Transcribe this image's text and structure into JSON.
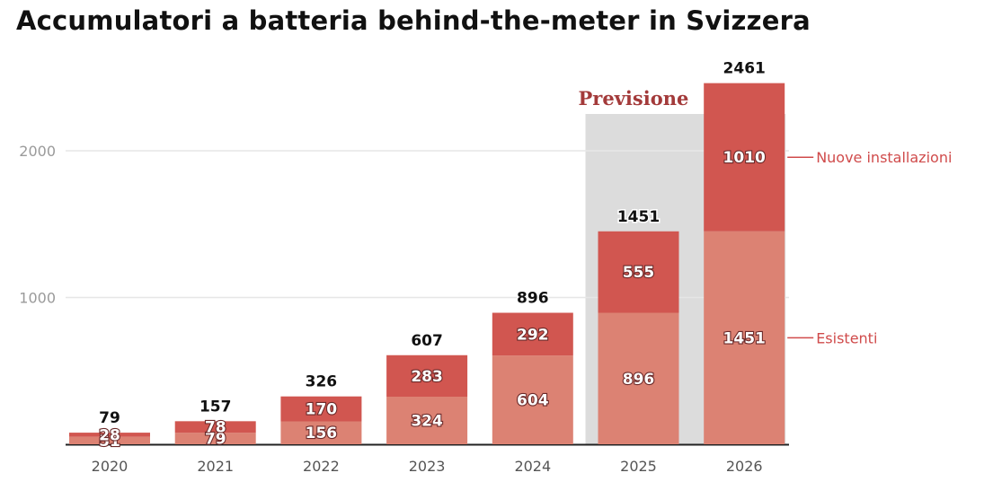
{
  "title": "Accumulatori a batteria behind-the-meter in Svizzera",
  "colors": {
    "existing": "#dc8273",
    "new": "#d15650",
    "forecast_bg": "#dcdcdc",
    "forecast_text": "#a33a3a",
    "legend_text": "#d04b4b",
    "grid": "#e6e6e6",
    "axis": "#222222"
  },
  "chart_data": {
    "type": "bar",
    "stacked": true,
    "title": "Accumulatori a batteria behind-the-meter in Svizzera",
    "xlabel": "",
    "ylabel": "",
    "categories": [
      "2020",
      "2021",
      "2022",
      "2023",
      "2024",
      "2025",
      "2026"
    ],
    "series": [
      {
        "name": "Esistenti",
        "values": [
          51,
          79,
          156,
          324,
          604,
          896,
          1451
        ]
      },
      {
        "name": "Nuove installazioni",
        "values": [
          28,
          78,
          170,
          283,
          292,
          555,
          1010
        ]
      }
    ],
    "totals": [
      79,
      157,
      326,
      607,
      896,
      1451,
      2461
    ],
    "segment_labels": {
      "Esistenti": [
        "51",
        "79",
        "156",
        "324",
        "604",
        "896",
        "1451"
      ],
      "Nuove installazioni": [
        "28",
        "78",
        "170",
        "283",
        "292",
        "555",
        "1010"
      ]
    },
    "total_labels": [
      "79",
      "157",
      "326",
      "607",
      "896",
      "1451",
      "2461"
    ],
    "yticks": [
      1000,
      2000
    ],
    "ytick_labels": [
      "1000",
      "2000"
    ],
    "ylim": [
      0,
      2500
    ],
    "grid": true,
    "legend": "right, inline labels",
    "annotations": [
      {
        "text": "Previsione",
        "applies_to": [
          "2025",
          "2026"
        ]
      }
    ]
  }
}
